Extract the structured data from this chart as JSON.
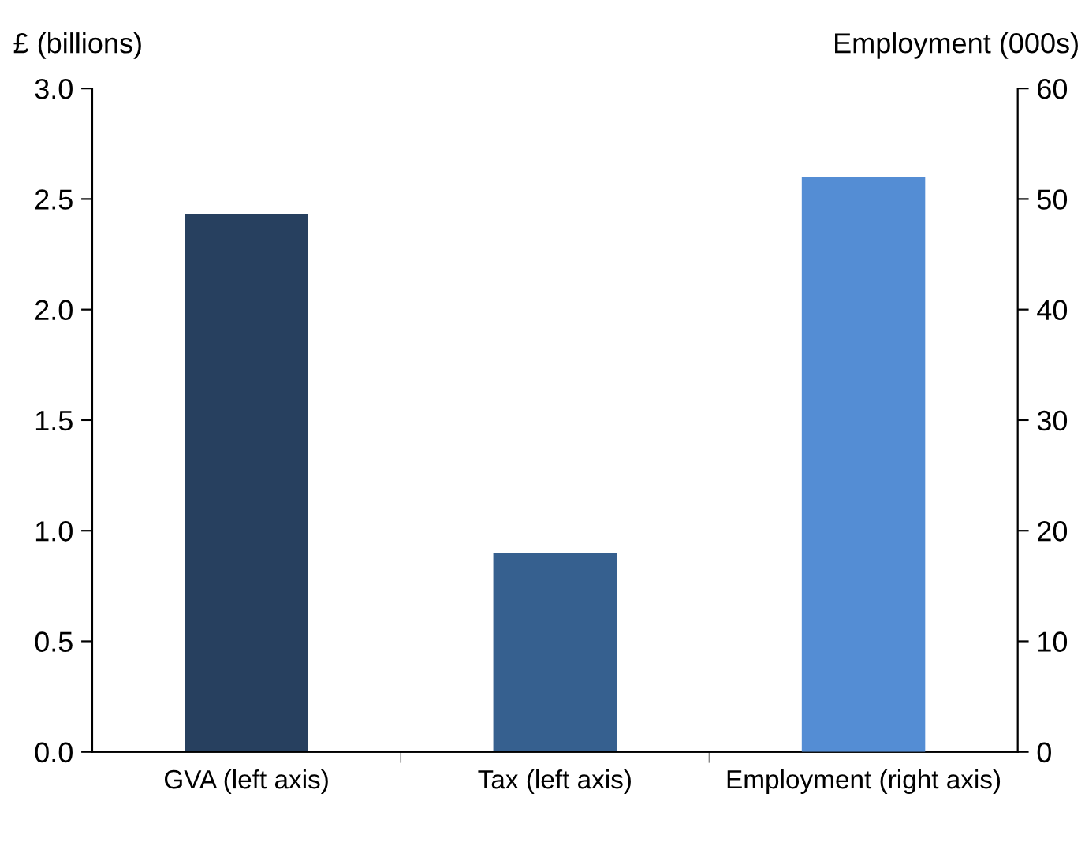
{
  "chart_data": {
    "type": "bar",
    "ylabel": "£ (billions)",
    "y2label": "Employment (000s)",
    "categories": [
      "GVA (left axis)",
      "Tax (left axis)",
      "Employment (right axis)"
    ],
    "series": [
      {
        "colors": [
          "#27405f",
          "#36608f",
          null
        ],
        "values": [
          2.43,
          0.9,
          null
        ]
      },
      {
        "colors": [
          null,
          null,
          "#548dd4"
        ],
        "values": [
          null,
          null,
          52
        ],
        "axis": "y2"
      }
    ],
    "ylim": [
      0,
      3
    ],
    "yticks": [
      {
        "value": 0,
        "label": "0.0"
      },
      {
        "value": 0.5,
        "label": "0.5"
      },
      {
        "value": 1,
        "label": "1.0"
      },
      {
        "value": 1.5,
        "label": "1.5"
      },
      {
        "value": 2,
        "label": "2.0"
      },
      {
        "value": 2.5,
        "label": "2.5"
      },
      {
        "value": 3,
        "label": "3.0"
      }
    ],
    "y2lim": [
      0,
      60
    ],
    "y2ticks": [
      0,
      10,
      20,
      30,
      40,
      50,
      60
    ],
    "grid": false,
    "legend": false
  }
}
